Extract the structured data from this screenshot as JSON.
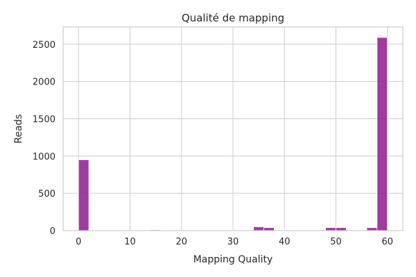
{
  "chart_data": {
    "type": "bar",
    "title": "Qualité de mapping",
    "xlabel": "Mapping Quality",
    "ylabel": "Reads",
    "xlim": [
      -3,
      63
    ],
    "ylim": [
      0,
      2730
    ],
    "xticks": [
      0,
      10,
      20,
      30,
      40,
      50,
      60
    ],
    "yticks": [
      0,
      500,
      1000,
      1500,
      2000,
      2500
    ],
    "grid": true,
    "bar_color": "#8e1a8e",
    "bin_width": 2,
    "bins": [
      {
        "x0": 0,
        "x1": 2,
        "value": 950
      },
      {
        "x0": 2,
        "x1": 4,
        "value": 5
      },
      {
        "x0": 4,
        "x1": 6,
        "value": 3
      },
      {
        "x0": 6,
        "x1": 8,
        "value": 2
      },
      {
        "x0": 8,
        "x1": 10,
        "value": 3
      },
      {
        "x0": 10,
        "x1": 12,
        "value": 3
      },
      {
        "x0": 12,
        "x1": 14,
        "value": 5
      },
      {
        "x0": 14,
        "x1": 16,
        "value": 10
      },
      {
        "x0": 16,
        "x1": 18,
        "value": 5
      },
      {
        "x0": 18,
        "x1": 20,
        "value": 4
      },
      {
        "x0": 20,
        "x1": 22,
        "value": 5
      },
      {
        "x0": 22,
        "x1": 24,
        "value": 3
      },
      {
        "x0": 24,
        "x1": 26,
        "value": 4
      },
      {
        "x0": 26,
        "x1": 28,
        "value": 3
      },
      {
        "x0": 28,
        "x1": 30,
        "value": 4
      },
      {
        "x0": 30,
        "x1": 32,
        "value": 4
      },
      {
        "x0": 32,
        "x1": 34,
        "value": 5
      },
      {
        "x0": 34,
        "x1": 36,
        "value": 50
      },
      {
        "x0": 36,
        "x1": 38,
        "value": 40
      },
      {
        "x0": 38,
        "x1": 40,
        "value": 5
      },
      {
        "x0": 40,
        "x1": 42,
        "value": 5
      },
      {
        "x0": 42,
        "x1": 44,
        "value": 4
      },
      {
        "x0": 44,
        "x1": 46,
        "value": 5
      },
      {
        "x0": 46,
        "x1": 48,
        "value": 5
      },
      {
        "x0": 48,
        "x1": 50,
        "value": 40
      },
      {
        "x0": 50,
        "x1": 52,
        "value": 40
      },
      {
        "x0": 52,
        "x1": 54,
        "value": 4
      },
      {
        "x0": 54,
        "x1": 56,
        "value": 5
      },
      {
        "x0": 56,
        "x1": 58,
        "value": 40
      },
      {
        "x0": 58,
        "x1": 60,
        "value": 2590
      }
    ]
  }
}
